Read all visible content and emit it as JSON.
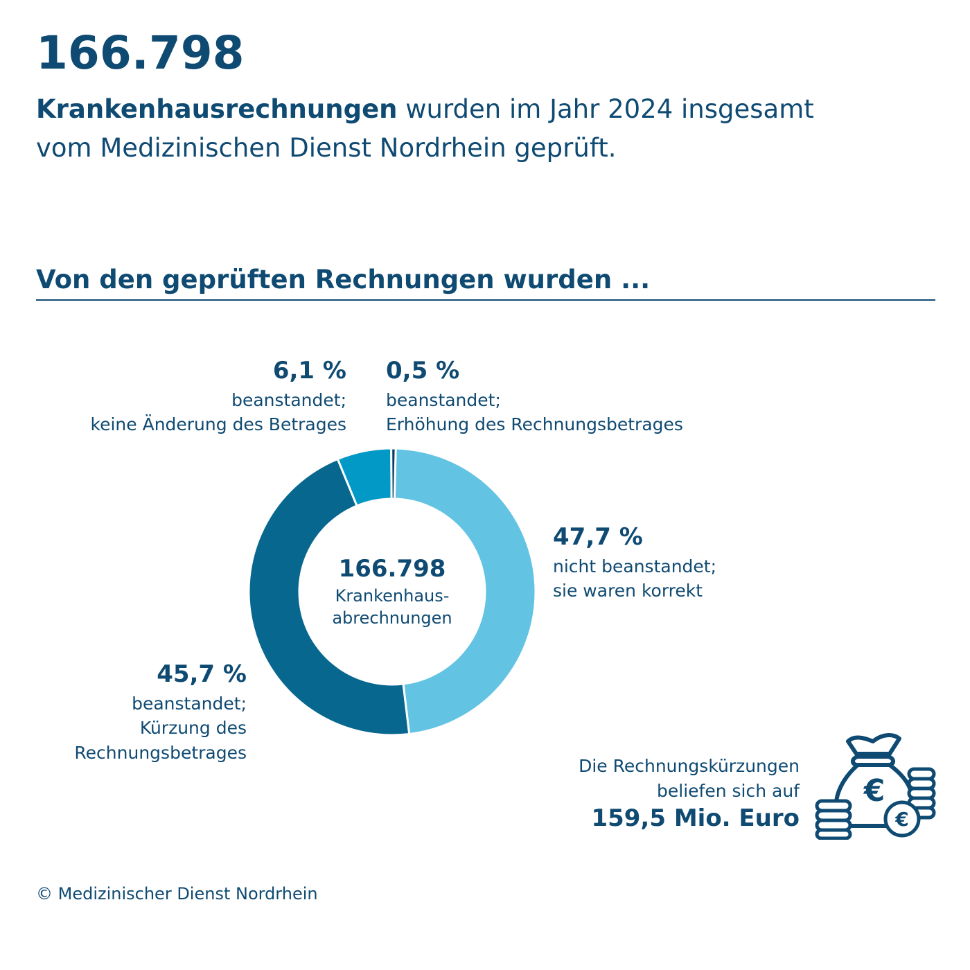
{
  "header": {
    "big_number": "166.798",
    "intro_bold": "Krankenhausrechnungen",
    "intro_rest_line1": " wurden im Jahr 2024 insgesamt",
    "intro_line2": "vom Medizinischen Dienst Nordrhein geprüft."
  },
  "section": {
    "subheading": "Von den geprüften Rechnungen wurden ..."
  },
  "chart_data": {
    "type": "pie",
    "donut": true,
    "center_value": "166.798",
    "center_label_line1": "Krankenhaus-",
    "center_label_line2": "abrechnungen",
    "segments": [
      {
        "value": 47.7,
        "pct_label": "47,7 %",
        "line1": "nicht beanstandet;",
        "line2": "sie waren korrekt",
        "line3": "",
        "color": "#62c3e3"
      },
      {
        "value": 45.7,
        "pct_label": "45,7 %",
        "line1": "beanstandet;",
        "line2": "Kürzung des",
        "line3": "Rechnungsbetrages",
        "color": "#07678e"
      },
      {
        "value": 6.1,
        "pct_label": "6,1 %",
        "line1": "beanstandet;",
        "line2": "keine Änderung des Betrages",
        "line3": "",
        "color": "#0399c6"
      },
      {
        "value": 0.5,
        "pct_label": "0,5 %",
        "line1": "beanstandet;",
        "line2": "Erhöhung des Rechnungsbetrages",
        "line3": "",
        "color": "#0c3f63"
      }
    ]
  },
  "savings": {
    "line1": "Die Rechnungskürzungen",
    "line2": "beliefen sich auf",
    "amount": "159,5 Mio. Euro",
    "icon": "money-bag-coins-euro-icon",
    "euro_symbol": "€"
  },
  "footer": {
    "copyright": "© Medizinischer Dienst Nordrhein"
  },
  "colors": {
    "text": "#0f4a72",
    "background": "#ffffff"
  }
}
